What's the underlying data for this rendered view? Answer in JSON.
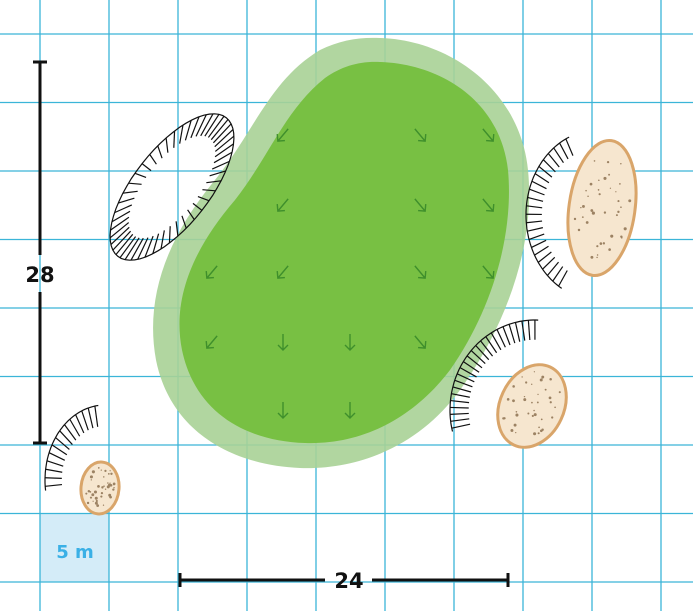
{
  "labels": {
    "depth": "28",
    "width": "24",
    "scale": "5 m"
  }
}
